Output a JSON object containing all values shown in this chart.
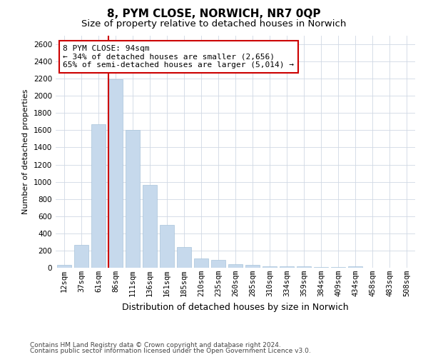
{
  "title": "8, PYM CLOSE, NORWICH, NR7 0QP",
  "subtitle": "Size of property relative to detached houses in Norwich",
  "xlabel": "Distribution of detached houses by size in Norwich",
  "ylabel": "Number of detached properties",
  "bar_color": "#c6d9ec",
  "bar_edge_color": "#a8c4da",
  "highlight_color": "#cc0000",
  "background_color": "#ffffff",
  "grid_color": "#d0d8e4",
  "categories": [
    "12sqm",
    "37sqm",
    "61sqm",
    "86sqm",
    "111sqm",
    "136sqm",
    "161sqm",
    "185sqm",
    "210sqm",
    "235sqm",
    "260sqm",
    "285sqm",
    "310sqm",
    "334sqm",
    "359sqm",
    "384sqm",
    "409sqm",
    "434sqm",
    "458sqm",
    "483sqm",
    "508sqm"
  ],
  "values": [
    30,
    270,
    1670,
    2190,
    1600,
    960,
    500,
    240,
    110,
    90,
    40,
    35,
    20,
    20,
    15,
    8,
    5,
    15,
    3,
    3,
    3
  ],
  "highlight_index": 3,
  "annotation_text": "8 PYM CLOSE: 94sqm\n← 34% of detached houses are smaller (2,656)\n65% of semi-detached houses are larger (5,014) →",
  "annotation_box_color": "#ffffff",
  "annotation_box_edge": "#cc0000",
  "ylim": [
    0,
    2700
  ],
  "yticks": [
    0,
    200,
    400,
    600,
    800,
    1000,
    1200,
    1400,
    1600,
    1800,
    2000,
    2200,
    2400,
    2600
  ],
  "footer_line1": "Contains HM Land Registry data © Crown copyright and database right 2024.",
  "footer_line2": "Contains public sector information licensed under the Open Government Licence v3.0.",
  "title_fontsize": 11,
  "subtitle_fontsize": 9.5,
  "xlabel_fontsize": 9,
  "ylabel_fontsize": 8,
  "tick_fontsize": 7.5,
  "annotation_fontsize": 8,
  "footer_fontsize": 6.5
}
